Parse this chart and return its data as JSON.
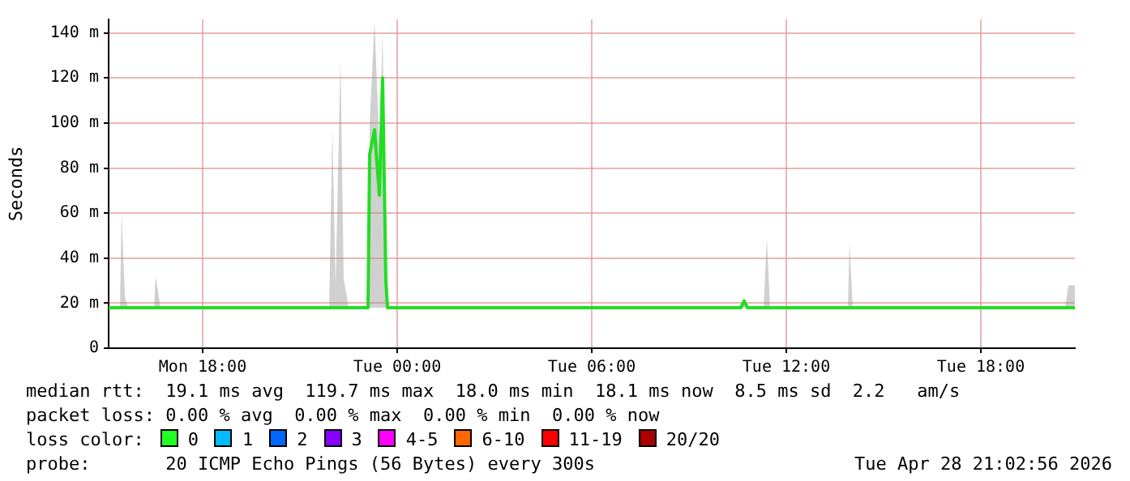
{
  "chart_data": {
    "type": "line",
    "ylabel": "Seconds",
    "x": [
      "2026-04-27T15:06",
      "2026-04-27T15:27",
      "2026-04-27T15:30",
      "2026-04-27T15:36",
      "2026-04-27T15:42",
      "2026-04-27T16:30",
      "2026-04-27T16:33",
      "2026-04-27T16:42",
      "2026-04-27T21:54",
      "2026-04-27T22:00",
      "2026-04-27T22:06",
      "2026-04-27T22:15",
      "2026-04-27T22:21",
      "2026-04-27T22:30",
      "2026-04-27T23:06",
      "2026-04-27T23:09",
      "2026-04-27T23:18",
      "2026-04-27T23:27",
      "2026-04-27T23:33",
      "2026-04-27T23:39",
      "2026-04-27T23:42",
      "2026-04-28T10:36",
      "2026-04-28T10:42",
      "2026-04-28T10:48",
      "2026-04-28T11:18",
      "2026-04-28T11:24",
      "2026-04-28T11:30",
      "2026-04-28T13:54",
      "2026-04-28T13:57",
      "2026-04-28T14:03",
      "2026-04-28T20:36",
      "2026-04-28T20:42",
      "2026-04-28T20:54"
    ],
    "series": [
      {
        "color": "#22dd22",
        "values": [
          18,
          18,
          18,
          18,
          18,
          18,
          18,
          18,
          18,
          18,
          18,
          18,
          18,
          18,
          18,
          86,
          97,
          68,
          120,
          30,
          18,
          18,
          21,
          18,
          18,
          18,
          18,
          18,
          18,
          18,
          18,
          18,
          18
        ],
        "lower": [
          18,
          18,
          18,
          18,
          18,
          18,
          18,
          18,
          18,
          18,
          18,
          18,
          18,
          18,
          18,
          18,
          18,
          18,
          18,
          18,
          18,
          18,
          18,
          18,
          18,
          18,
          18,
          18,
          18,
          18,
          18,
          18,
          18
        ],
        "upper": [
          18,
          18,
          60,
          23,
          18,
          18,
          32,
          18,
          18,
          97,
          28,
          128,
          31,
          18,
          18,
          100,
          145,
          90,
          140,
          33,
          18,
          18,
          21,
          18,
          18,
          49,
          18,
          18,
          47,
          18,
          18,
          28,
          28
        ]
      }
    ],
    "xlim": [
      "2026-04-27T15:06",
      "2026-04-28T20:54"
    ],
    "xticks": [
      {
        "value": "2026-04-27T18:00",
        "label": "Mon 18:00"
      },
      {
        "value": "2026-04-28T00:00",
        "label": "Tue 00:00"
      },
      {
        "value": "2026-04-28T06:00",
        "label": "Tue 06:00"
      },
      {
        "value": "2026-04-28T12:00",
        "label": "Tue 12:00"
      },
      {
        "value": "2026-04-28T18:00",
        "label": "Tue 18:00"
      }
    ],
    "ylim": [
      0,
      146
    ],
    "yticks": [
      0,
      {
        "value": 20,
        "label": "20 m"
      },
      {
        "value": 40,
        "label": "40 m"
      },
      {
        "value": 60,
        "label": "60 m"
      },
      {
        "value": 80,
        "label": "80 m"
      },
      {
        "value": 100,
        "label": "100 m"
      },
      {
        "value": 120,
        "label": "120 m"
      },
      {
        "value": 140,
        "label": "140 m"
      }
    ],
    "grid": true,
    "legend": false,
    "marker": "none",
    "line_style": "solid",
    "annotations": [
      "median rtt:  19.1 ms avg  119.7 ms max  18.0 ms min  18.1 ms now  8.5 ms sd  2.2   am/s",
      "packet loss: 0.00 % avg  0.00 % max  0.00 % min  0.00 % now",
      "loss color:",
      "0",
      "1",
      "2",
      "3",
      "4-5",
      "6-10",
      "11-19",
      "20/20",
      "probe:       20 ICMP Echo Pings (56 Bytes) every 300s",
      "Tue Apr 28 21:02:56 2026"
    ]
  }
}
